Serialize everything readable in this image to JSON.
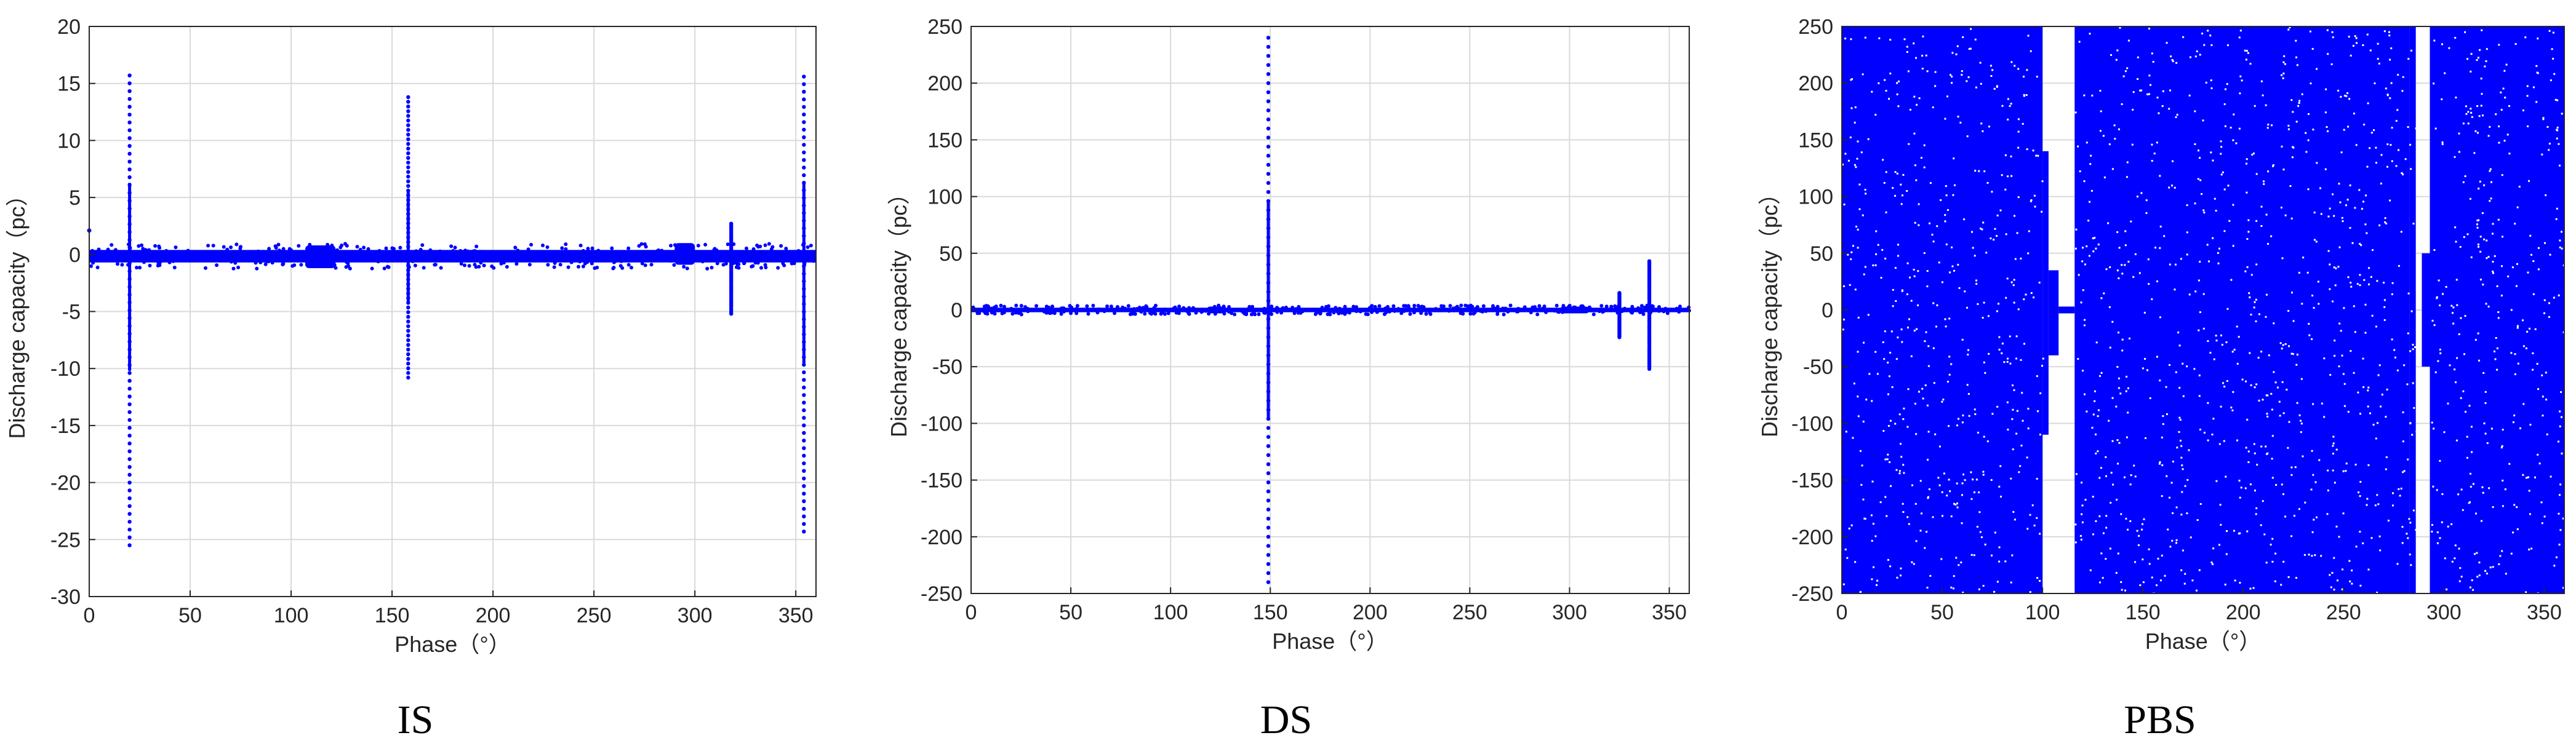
{
  "colors": {
    "series": "#0000ff",
    "grid": "#d9d9d9",
    "axis": "#262626",
    "background": "#ffffff"
  },
  "chart_data": [
    {
      "id": "IS",
      "type": "scatter",
      "caption": "IS",
      "xlabel": "Phase（°）",
      "ylabel": "Discharge capacity（pc）",
      "xlim": [
        0,
        360
      ],
      "ylim": [
        -30,
        20
      ],
      "xticks": [
        0,
        50,
        100,
        150,
        200,
        250,
        300,
        350
      ],
      "yticks": [
        -30,
        -25,
        -20,
        -15,
        -10,
        -5,
        0,
        5,
        10,
        15,
        20
      ],
      "grid": true,
      "baseline_band": {
        "x": [
          0,
          360
        ],
        "y": [
          -0.7,
          0.4
        ]
      },
      "bumps": [
        {
          "x": [
            107,
            122
          ],
          "y": [
            -1.2,
            0.8
          ]
        },
        {
          "x": [
            290,
            300
          ],
          "y": [
            -0.9,
            1.0
          ]
        }
      ],
      "spikes": [
        {
          "x": 20,
          "ymin": -25.5,
          "ymax": 15.7
        },
        {
          "x": 158,
          "ymin": -10.8,
          "ymax": 13.8
        },
        {
          "x": 318,
          "ymin": -5.2,
          "ymax": 2.7
        },
        {
          "x": 354,
          "ymin": -24.3,
          "ymax": 15.6
        }
      ],
      "outliers": [
        {
          "x": 0,
          "y": 2.1
        }
      ]
    },
    {
      "id": "DS",
      "type": "scatter",
      "caption": "DS",
      "xlabel": "Phase（°）",
      "ylabel": "Discharge capacity（pc）",
      "xlim": [
        0,
        360
      ],
      "ylim": [
        -250,
        250
      ],
      "xticks": [
        0,
        50,
        100,
        150,
        200,
        250,
        300,
        350
      ],
      "yticks": [
        -250,
        -200,
        -150,
        -100,
        -50,
        0,
        50,
        100,
        150,
        200,
        250
      ],
      "grid": true,
      "baseline_band": {
        "x": [
          0,
          360
        ],
        "y": [
          -2,
          2
        ]
      },
      "bumps": [
        {
          "x": [
            118,
            128
          ],
          "y": [
            -3,
            3
          ]
        },
        {
          "x": [
            295,
            310
          ],
          "y": [
            -3,
            3
          ]
        }
      ],
      "spikes": [
        {
          "x": 149,
          "ymin": -240,
          "ymax": 240
        },
        {
          "x": 325,
          "ymin": -24,
          "ymax": 15
        },
        {
          "x": 340,
          "ymin": -52,
          "ymax": 43
        }
      ],
      "outliers": []
    },
    {
      "id": "PBS",
      "type": "scatter",
      "caption": "PBS",
      "xlabel": "Phase（°）",
      "ylabel": "Discharge capacity（pc）",
      "xlim": [
        0,
        360
      ],
      "ylim": [
        -250,
        250
      ],
      "xticks": [
        0,
        50,
        100,
        150,
        200,
        250,
        300,
        350
      ],
      "yticks": [
        -250,
        -200,
        -150,
        -100,
        -50,
        0,
        50,
        100,
        150,
        200,
        250
      ],
      "grid": true,
      "fill_regions": [
        {
          "x": [
            0,
            100
          ],
          "y": [
            -250,
            250
          ]
        },
        {
          "x": [
            100,
            103
          ],
          "y": [
            -110,
            140
          ]
        },
        {
          "x": [
            103,
            108
          ],
          "y": [
            -40,
            35
          ]
        },
        {
          "x": [
            108,
            116
          ],
          "y": [
            -3,
            3
          ]
        },
        {
          "x": [
            116,
            283
          ],
          "y": [
            -250,
            250
          ]
        },
        {
          "x": [
            283,
            286
          ],
          "y": [
            -250,
            250
          ]
        },
        {
          "x": [
            289,
            293
          ],
          "y": [
            -50,
            50
          ]
        },
        {
          "x": [
            293,
            360
          ],
          "y": [
            -250,
            250
          ]
        }
      ],
      "gaps": [
        {
          "x": [
            100,
            116
          ],
          "note": "empty region"
        },
        {
          "x": [
            286,
            289
          ],
          "note": "empty region"
        }
      ]
    }
  ]
}
